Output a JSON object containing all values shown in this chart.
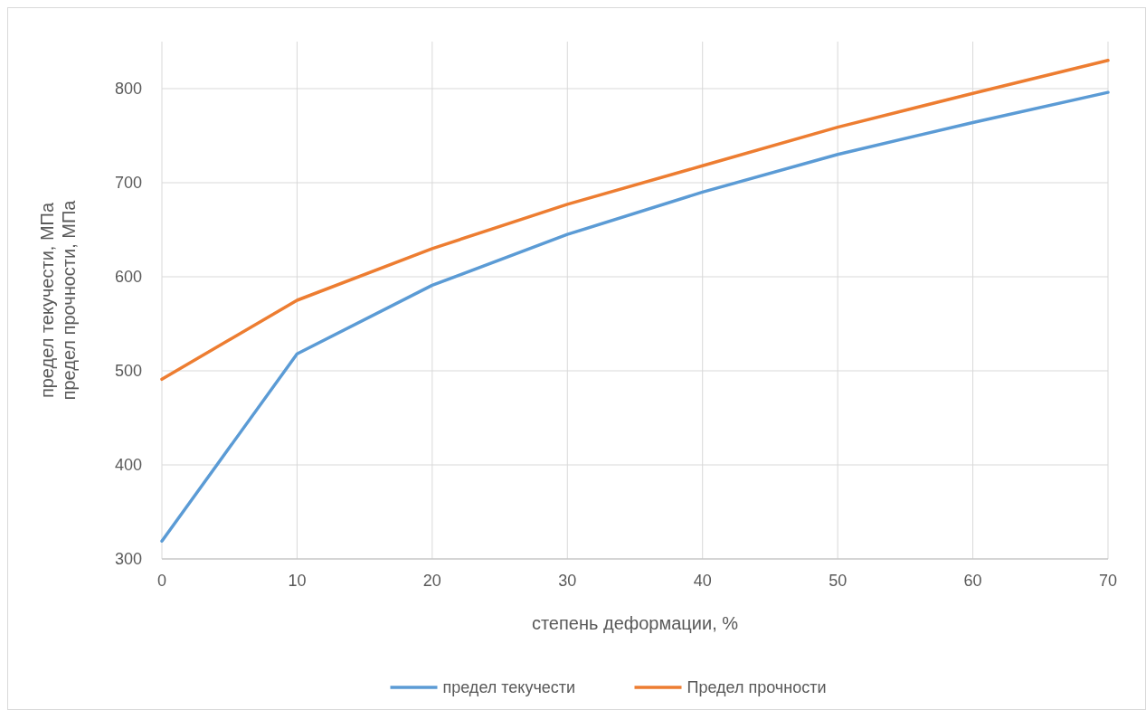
{
  "chart_data": {
    "type": "line",
    "xlabel": "степень деформации, %",
    "ylabel": "предел текучести, МПа\nпредел прочности, МПа",
    "x": [
      0,
      10,
      20,
      30,
      40,
      50,
      60,
      70
    ],
    "series": [
      {
        "name": "предел текучести",
        "color": "#5b9bd5",
        "values": [
          319,
          518,
          591,
          645,
          690,
          730,
          764,
          796
        ]
      },
      {
        "name": "Предел прочности",
        "color": "#ed7d31",
        "values": [
          491,
          575,
          630,
          677,
          718,
          759,
          795,
          830
        ]
      }
    ],
    "xlim": [
      0,
      70
    ],
    "xticks": [
      0,
      10,
      20,
      30,
      40,
      50,
      60,
      70
    ],
    "ylim": [
      300,
      850
    ],
    "yticks": [
      300,
      400,
      500,
      600,
      700,
      800
    ],
    "grid": true,
    "legend": "bottom",
    "marker": "none",
    "line_style": "solid"
  }
}
